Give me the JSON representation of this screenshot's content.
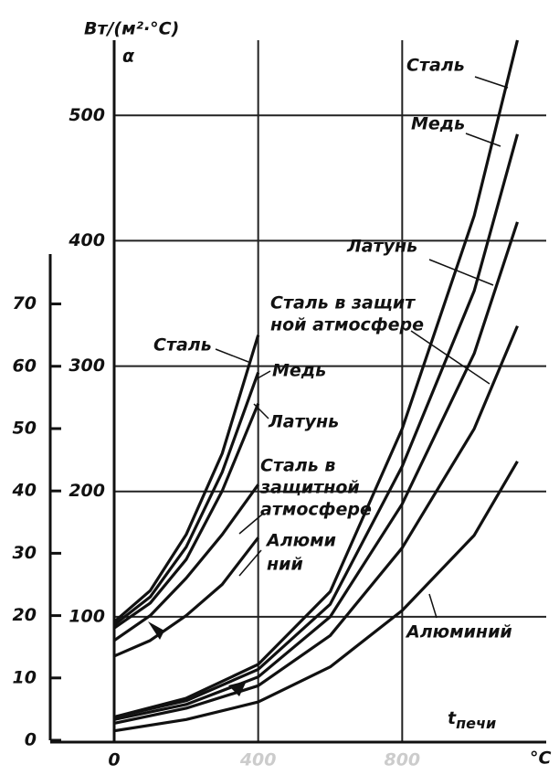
{
  "chart_data": {
    "type": "line",
    "title": "Вт/(м²·°С)",
    "symbol": "α",
    "xlabel": {
      "symbol": "t",
      "subscript": "печи"
    },
    "xunit": "°C",
    "xlim": [
      0,
      1200
    ],
    "xticks": [
      0,
      400,
      800
    ],
    "ylim": [
      0,
      560
    ],
    "yticks": [
      100,
      200,
      300,
      400,
      500
    ],
    "y2lim": [
      0,
      78
    ],
    "y2ticks": [
      0,
      10,
      20,
      30,
      40,
      50,
      60,
      70
    ],
    "grid": true,
    "series": [
      {
        "label_lines": [
          "Сталь"
        ],
        "color": "#111111",
        "x": [
          0,
          200,
          400,
          600,
          800,
          1000,
          1120
        ],
        "values": [
          20,
          35,
          62,
          120,
          250,
          420,
          560
        ]
      },
      {
        "label_lines": [
          "Медь"
        ],
        "color": "#111111",
        "x": [
          0,
          200,
          400,
          600,
          800,
          1000,
          1120
        ],
        "values": [
          20,
          33,
          58,
          110,
          220,
          360,
          485
        ]
      },
      {
        "label_lines": [
          "Латунь"
        ],
        "color": "#111111",
        "x": [
          0,
          200,
          400,
          600,
          800,
          1000,
          1120
        ],
        "values": [
          18,
          30,
          52,
          100,
          190,
          310,
          415
        ]
      },
      {
        "label_lines": [
          "Сталь в защит",
          "ной атмосфере"
        ],
        "color": "#111111",
        "x": [
          0,
          200,
          400,
          600,
          800,
          1000,
          1120
        ],
        "values": [
          15,
          27,
          45,
          85,
          155,
          250,
          332
        ]
      },
      {
        "label_lines": [
          "Алюминий"
        ],
        "color": "#111111",
        "x": [
          0,
          200,
          400,
          600,
          800,
          1000,
          1120
        ],
        "values": [
          9,
          18,
          32,
          60,
          105,
          165,
          224
        ]
      },
      {
        "label_lines": [
          "Сталь"
        ],
        "color": "#111111",
        "axis": "y2",
        "x": [
          0,
          100,
          200,
          300,
          400
        ],
        "values": [
          19,
          24,
          33,
          46,
          65
        ]
      },
      {
        "label_lines": [
          "Медь"
        ],
        "color": "#111111",
        "axis": "y2",
        "x": [
          0,
          100,
          200,
          300,
          400
        ],
        "values": [
          18.5,
          23,
          31,
          43,
          59
        ]
      },
      {
        "label_lines": [
          "Латунь"
        ],
        "color": "#111111",
        "axis": "y2",
        "x": [
          0,
          100,
          200,
          300,
          400
        ],
        "values": [
          18,
          22,
          29,
          40,
          54
        ]
      },
      {
        "label_lines": [
          "Сталь в",
          "защитной",
          "атмосфере"
        ],
        "color": "#111111",
        "axis": "y2",
        "x": [
          0,
          100,
          200,
          300,
          400
        ],
        "values": [
          16,
          20,
          26,
          33,
          41
        ]
      },
      {
        "label_lines": [
          "Алюми",
          "ний"
        ],
        "color": "#111111",
        "axis": "y2",
        "x": [
          0,
          100,
          200,
          300,
          400
        ],
        "values": [
          13.5,
          16,
          20,
          25,
          32.5
        ]
      }
    ]
  }
}
